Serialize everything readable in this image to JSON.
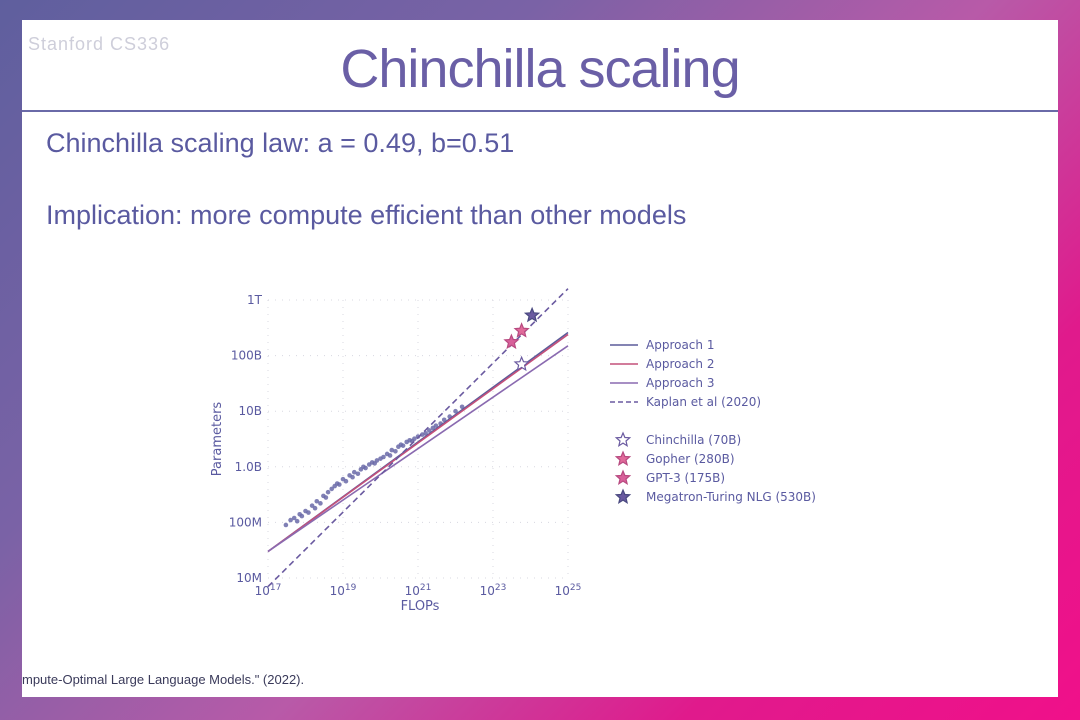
{
  "slide": {
    "logo_text": "Stanford CS336",
    "title": "Chinchilla scaling",
    "line1": "Chinchilla scaling law: a = 0.49, b=0.51",
    "line2": "Implication: more compute efficient than other models",
    "citation": "mpute-Optimal Large Language Models.\"  (2022)."
  },
  "colors": {
    "title": "#6a5fa6",
    "text": "#5a5aa0",
    "approach1": "#5b5b9a",
    "approach2": "#c4507a",
    "approach3": "#8a6ab0",
    "kaplan": "#6a5aa0",
    "points": "#6a6aa8"
  },
  "chart_data": {
    "type": "scatter",
    "xlabel": "FLOPs",
    "ylabel": "Parameters",
    "x_scale": "log",
    "y_scale": "log",
    "xlim": [
      1e+17,
      1e+25
    ],
    "ylim": [
      10000000.0,
      1000000000000.0
    ],
    "x_ticks": [
      {
        "value": 1e+17,
        "label": "10^17"
      },
      {
        "value": 1e+19,
        "label": "10^19"
      },
      {
        "value": 1e+21,
        "label": "10^21"
      },
      {
        "value": 1e+23,
        "label": "10^23"
      },
      {
        "value": 1e+25,
        "label": "10^25"
      }
    ],
    "y_ticks": [
      {
        "value": 10000000.0,
        "label": "10M"
      },
      {
        "value": 100000000.0,
        "label": "100M"
      },
      {
        "value": 1000000000.0,
        "label": "1.0B"
      },
      {
        "value": 10000000000.0,
        "label": "10B"
      },
      {
        "value": 100000000000.0,
        "label": "100B"
      },
      {
        "value": 1000000000000.0,
        "label": "1T"
      }
    ],
    "grid": true,
    "legend_position": "right",
    "lines": [
      {
        "name": "Approach 1",
        "style": "solid",
        "points": [
          [
            1e+17,
            30000000.0
          ],
          [
            1e+25,
            260000000000.0
          ]
        ]
      },
      {
        "name": "Approach 2",
        "style": "solid",
        "points": [
          [
            1e+17,
            30000000.0
          ],
          [
            1e+25,
            240000000000.0
          ]
        ]
      },
      {
        "name": "Approach 3",
        "style": "solid",
        "points": [
          [
            1e+17,
            30000000.0
          ],
          [
            1e+25,
            150000000000.0
          ]
        ]
      },
      {
        "name": "Kaplan et al (2020)",
        "style": "dashed",
        "points": [
          [
            1e+17,
            7000000.0
          ],
          [
            1e+25,
            1600000000000.0
          ]
        ]
      }
    ],
    "models": [
      {
        "name": "Chinchilla (70B)",
        "flops": 5.8e+23,
        "params": 70000000000.0,
        "star": "outline"
      },
      {
        "name": "Gopher (280B)",
        "flops": 5.8e+23,
        "params": 280000000000.0,
        "star": "filled"
      },
      {
        "name": "GPT-3 (175B)",
        "flops": 3.1e+23,
        "params": 175000000000.0,
        "star": "filled"
      },
      {
        "name": "Megatron-Turing NLG (530B)",
        "flops": 1.1e+24,
        "params": 530000000000.0,
        "star": "filled"
      }
    ],
    "scatter_points": [
      [
        3e+17,
        90000000.0
      ],
      [
        4e+17,
        110000000.0
      ],
      [
        5e+17,
        120000000.0
      ],
      [
        6e+17,
        105000000.0
      ],
      [
        7e+17,
        140000000.0
      ],
      [
        8e+17,
        130000000.0
      ],
      [
        1e+18,
        160000000.0
      ],
      [
        1.2e+18,
        150000000.0
      ],
      [
        1.5e+18,
        200000000.0
      ],
      [
        1.8e+18,
        180000000.0
      ],
      [
        2e+18,
        240000000.0
      ],
      [
        2.5e+18,
        220000000.0
      ],
      [
        3e+18,
        300000000.0
      ],
      [
        3.5e+18,
        280000000.0
      ],
      [
        4e+18,
        350000000.0
      ],
      [
        5e+18,
        400000000.0
      ],
      [
        6e+18,
        450000000.0
      ],
      [
        7e+18,
        500000000.0
      ],
      [
        8e+18,
        480000000.0
      ],
      [
        1e+19,
        600000000.0
      ],
      [
        1.2e+19,
        550000000.0
      ],
      [
        1.5e+19,
        700000000.0
      ],
      [
        1.8e+19,
        650000000.0
      ],
      [
        2e+19,
        800000000.0
      ],
      [
        2.5e+19,
        750000000.0
      ],
      [
        3e+19,
        900000000.0
      ],
      [
        3.5e+19,
        1000000000.0
      ],
      [
        4e+19,
        950000000.0
      ],
      [
        5e+19,
        1100000000.0
      ],
      [
        6e+19,
        1200000000.0
      ],
      [
        7e+19,
        1150000000.0
      ],
      [
        8e+19,
        1300000000.0
      ],
      [
        1e+20,
        1400000000.0
      ],
      [
        1.2e+20,
        1500000000.0
      ],
      [
        1.5e+20,
        1700000000.0
      ],
      [
        1.8e+20,
        1600000000.0
      ],
      [
        2e+20,
        2000000000.0
      ],
      [
        2.5e+20,
        1900000000.0
      ],
      [
        3e+20,
        2300000000.0
      ],
      [
        3.5e+20,
        2500000000.0
      ],
      [
        4e+20,
        2400000000.0
      ],
      [
        5e+20,
        2800000000.0
      ],
      [
        6e+20,
        3000000000.0
      ],
      [
        7e+20,
        2900000000.0
      ],
      [
        8e+20,
        3200000000.0
      ],
      [
        1e+21,
        3500000000.0
      ],
      [
        1.3e+21,
        3800000000.0
      ],
      [
        1.6e+21,
        4000000000.0
      ],
      [
        2e+21,
        4500000000.0
      ],
      [
        2.5e+21,
        5000000000.0
      ],
      [
        3e+21,
        5500000000.0
      ],
      [
        4e+21,
        6000000000.0
      ],
      [
        5e+21,
        7000000000.0
      ],
      [
        7e+21,
        8000000000.0
      ],
      [
        1e+22,
        10000000000.0
      ],
      [
        1.5e+22,
        12000000000.0
      ]
    ]
  }
}
